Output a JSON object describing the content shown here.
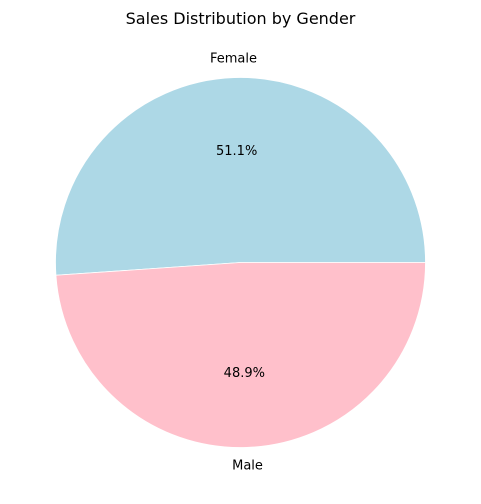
{
  "chart_data": {
    "type": "pie",
    "title": "Sales Distribution by Gender",
    "slices": [
      {
        "label": "Female",
        "value": 51.1,
        "pct_text": "51.1%",
        "color": "#add8e6"
      },
      {
        "label": "Male",
        "value": 48.9,
        "pct_text": "48.9%",
        "color": "#ffc0cb"
      }
    ],
    "start_angle_deg": 0,
    "direction": "counterclockwise",
    "edge_color": "#ffffff"
  }
}
